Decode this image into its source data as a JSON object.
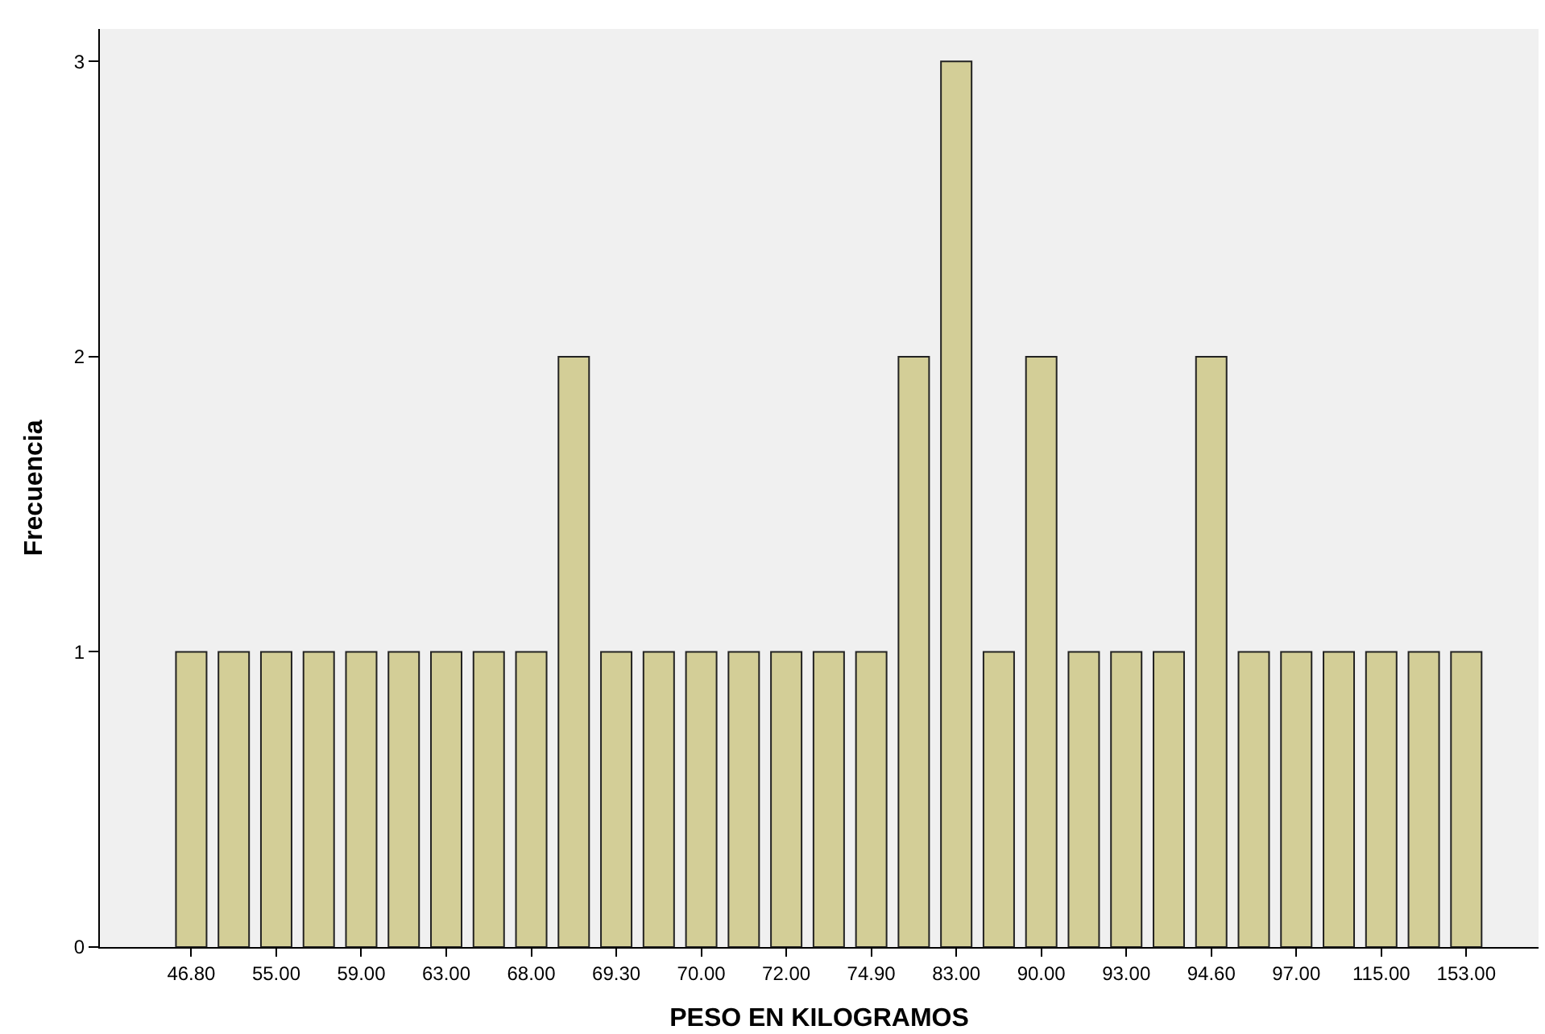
{
  "chart_data": {
    "type": "bar",
    "xlabel": "PESO EN KILOGRAMOS",
    "ylabel": "Frecuencia",
    "categories": [
      "46.80",
      null,
      "55.00",
      null,
      "59.00",
      null,
      "63.00",
      null,
      "68.00",
      null,
      "69.30",
      null,
      "70.00",
      null,
      "72.00",
      null,
      "74.90",
      null,
      "83.00",
      null,
      "90.00",
      null,
      "93.00",
      null,
      "94.60",
      null,
      "97.00",
      null,
      "115.00",
      null,
      "153.00"
    ],
    "values": [
      1,
      1,
      1,
      1,
      1,
      1,
      1,
      1,
      1,
      2,
      1,
      1,
      1,
      1,
      1,
      1,
      1,
      2,
      3,
      1,
      2,
      1,
      1,
      1,
      2,
      1,
      1,
      1,
      1,
      1,
      1
    ],
    "color": "#d3ce97",
    "ylim": [
      0,
      3.11
    ],
    "yticks": [
      0,
      1,
      2,
      3
    ],
    "grid": false,
    "legend": false
  }
}
